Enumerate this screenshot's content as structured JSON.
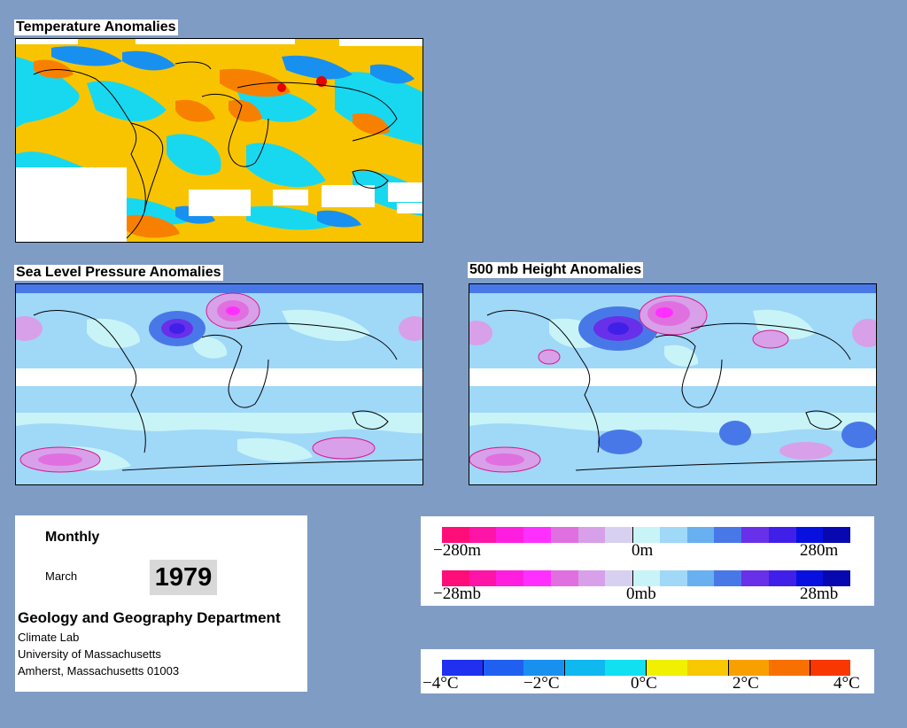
{
  "maps": {
    "temperature": {
      "title": "Temperature Anomalies"
    },
    "pressure": {
      "title": "Sea Level Pressure Anomalies"
    },
    "height": {
      "title": "500 mb Height Anomalies"
    }
  },
  "info": {
    "period": "Monthly",
    "month": "March",
    "year": "1979",
    "department": "Geology and Geography Department",
    "lab": "Climate Lab",
    "university": "University of Massachusetts",
    "address": "Amherst, Massachusetts 01003"
  },
  "legend_height_pressure": {
    "colors": [
      "#ff0d78",
      "#ff14a8",
      "#ff1ee0",
      "#ff30ff",
      "#e070e0",
      "#d8a0e8",
      "#d8d0f0",
      "#c8f4f8",
      "#a0d8f8",
      "#68b0f0",
      "#4878e8",
      "#6830e8",
      "#4020e8",
      "#0810e0",
      "#0808b0"
    ],
    "height_labels": [
      "−280m",
      "0m",
      "280m"
    ],
    "pressure_labels": [
      "−28mb",
      "0mb",
      "28mb"
    ]
  },
  "legend_temperature": {
    "colors": [
      "#2030f0",
      "#2060f0",
      "#1890f0",
      "#10b8f0",
      "#10e0f0",
      "#f0f000",
      "#f8c800",
      "#f8a000",
      "#f87000",
      "#f83800"
    ],
    "labels": [
      "−4°C",
      "−2°C",
      "0°C",
      "2°C",
      "4°C"
    ]
  }
}
